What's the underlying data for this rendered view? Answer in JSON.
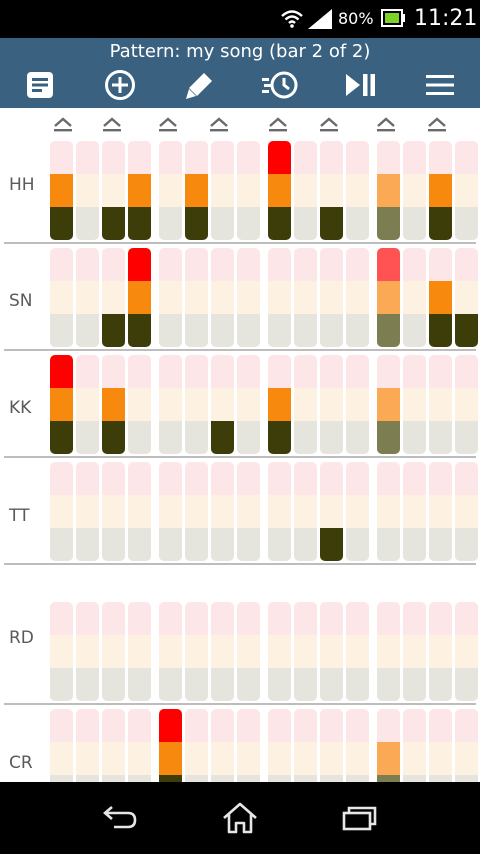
{
  "status_bar": {
    "battery_percent": "80%",
    "time": "11:21",
    "icons": [
      "wifi-icon",
      "signal-icon",
      "battery-charging-icon"
    ]
  },
  "header": {
    "title": "Pattern: my song (bar 2 of 2)",
    "tools": [
      "pattern-list-icon",
      "add-icon",
      "edit-pencil-icon",
      "tempo-timer-icon",
      "play-pause-icon",
      "menu-icon"
    ]
  },
  "colors": {
    "header_bg": "#3a6280",
    "top_off": "#fde6e8",
    "mid_off": "#fdf1e1",
    "bot_off": "#e5e5dd",
    "top_on": "#ff0000",
    "top_on_light": "#ff5252",
    "mid_on": "#f7890e",
    "mid_on_light": "#fba955",
    "bot_on": "#3d3d0a",
    "bot_on_light": "#7d7d52"
  },
  "grid": {
    "step_count": 16,
    "rows": [
      {
        "label": "HH",
        "top": [
          9
        ],
        "mid": [
          1,
          4,
          6,
          9,
          15
        ],
        "bot": [
          1,
          3,
          4,
          6,
          9,
          11,
          15
        ],
        "light_mid": [
          13
        ],
        "light_bot": [
          13
        ],
        "light_top": []
      },
      {
        "label": "SN",
        "top": [
          4
        ],
        "mid": [
          4,
          15
        ],
        "bot": [
          3,
          4,
          15,
          16
        ],
        "light_top": [
          13
        ],
        "light_mid": [
          13
        ],
        "light_bot": [
          13
        ]
      },
      {
        "label": "KK",
        "top": [
          1
        ],
        "mid": [
          1,
          3,
          9
        ],
        "bot": [
          1,
          3,
          7,
          9
        ],
        "light_top": [],
        "light_mid": [
          13
        ],
        "light_bot": [
          13
        ]
      },
      {
        "label": "TT",
        "top": [],
        "mid": [],
        "bot": [
          11
        ],
        "light_top": [],
        "light_mid": [],
        "light_bot": []
      },
      {
        "label": "RD",
        "top": [],
        "mid": [],
        "bot": [],
        "light_top": [],
        "light_mid": [],
        "light_bot": []
      },
      {
        "label": "CR",
        "top": [
          5
        ],
        "mid": [
          5
        ],
        "bot": [
          5
        ],
        "light_top": [],
        "light_mid": [
          13
        ],
        "light_bot": [
          13
        ]
      }
    ]
  },
  "nav": [
    "back-icon",
    "home-icon",
    "recent-apps-icon"
  ]
}
